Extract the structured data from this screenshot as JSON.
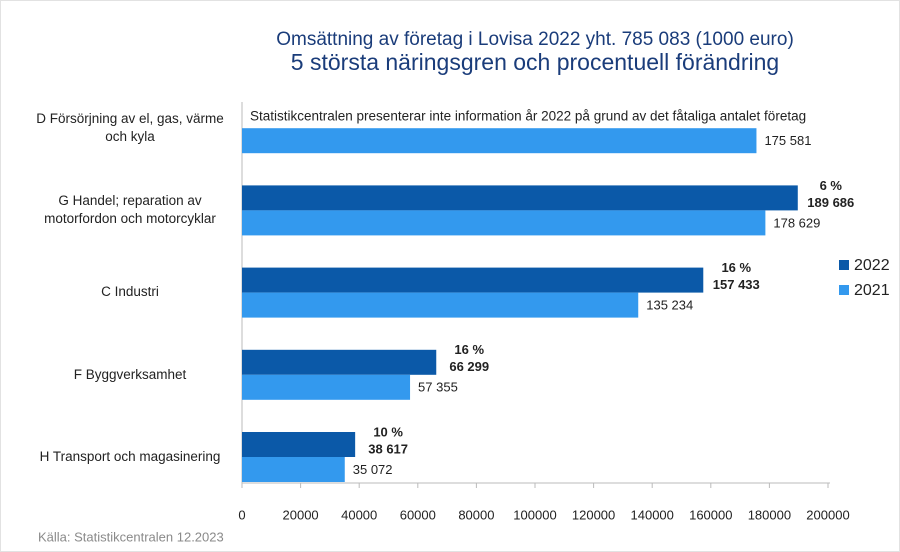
{
  "chart_data": {
    "type": "bar",
    "orientation": "horizontal",
    "title": "Omsättning av företag  i Lovisa 2022 yht. 785 083 (1000 euro)",
    "subtitle": "5 största näringsgren och procentuell förändring",
    "annotation": "Statistikcentralen presenterar inte information år 2022 på grund av det fåtaliga antalet företag",
    "source": "Källa: Statistikcentralen 12.2023",
    "categories": [
      "D Försörjning av el, gas, värme och kyla",
      "G Handel; reparation av motorfordon och motorcyklar",
      "C Industri",
      "F Byggverksamhet",
      "H Transport och magasinering"
    ],
    "series": [
      {
        "name": "2022",
        "color": "#0b59a8",
        "values": [
          null,
          189686,
          157433,
          66299,
          38617
        ],
        "value_labels": [
          null,
          "189 686",
          "157 433",
          "66 299",
          "38 617"
        ],
        "change_values": [
          null,
          6,
          16,
          16,
          10
        ],
        "change_labels": [
          null,
          "6 %",
          "16 %",
          "16 %",
          "10 %"
        ]
      },
      {
        "name": "2021",
        "color": "#3399ee",
        "values": [
          175581,
          178629,
          135234,
          57355,
          35072
        ],
        "value_labels": [
          "175 581",
          "178 629",
          "135 234",
          "57 355",
          "35 072"
        ]
      }
    ],
    "xlim": [
      0,
      200000
    ],
    "xticks": [
      0,
      20000,
      40000,
      60000,
      80000,
      100000,
      120000,
      140000,
      160000,
      180000,
      200000
    ],
    "grid": false,
    "legend": "right"
  }
}
